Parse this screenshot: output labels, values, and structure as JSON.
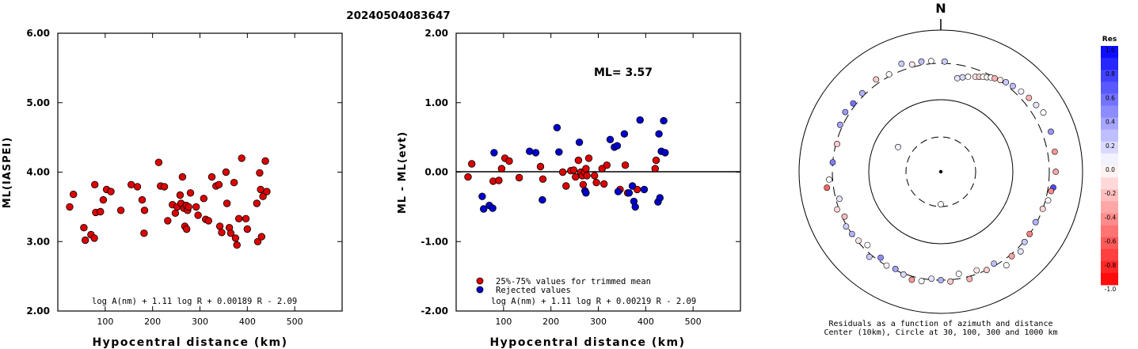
{
  "figure": {
    "title": "20240504083647",
    "north_label": "N",
    "colorbar_title": "Res",
    "colorbar_ticks": [
      "1.0",
      "0.8",
      "0.6",
      "0.4",
      "0.2",
      "0.0",
      "-0.2",
      "-0.4",
      "-0.6",
      "-0.8",
      "-1.0"
    ],
    "polar_caption_line1": "Residuals as a function of azimuth and distance",
    "polar_caption_line2": "Center (10km), Circle at 30, 100, 300 and 1000 km"
  },
  "chart_data": [
    {
      "type": "scatter",
      "title": "",
      "xlabel": "Hypocentral distance (km)",
      "ylabel": "ML(IASPEI)",
      "xlim": [
        0,
        600
      ],
      "ylim": [
        2.0,
        6.0
      ],
      "x_ticks": [
        "100",
        "200",
        "300",
        "400",
        "500"
      ],
      "y_ticks": [
        "2.00",
        "3.00",
        "4.00",
        "5.00",
        "6.00"
      ],
      "annotation": "log A(nm) + 1.11 log R + 0.00189 R - 2.09",
      "series": [
        {
          "color": "#dd0000",
          "points": [
            [
              25,
              3.5
            ],
            [
              33,
              3.68
            ],
            [
              55,
              3.2
            ],
            [
              58,
              3.02
            ],
            [
              70,
              3.1
            ],
            [
              77,
              3.05
            ],
            [
              78,
              3.82
            ],
            [
              80,
              3.42
            ],
            [
              90,
              3.43
            ],
            [
              96,
              3.6
            ],
            [
              103,
              3.75
            ],
            [
              112,
              3.72
            ],
            [
              133,
              3.45
            ],
            [
              155,
              3.82
            ],
            [
              168,
              3.79
            ],
            [
              178,
              3.6
            ],
            [
              182,
              3.12
            ],
            [
              183,
              3.45
            ],
            [
              213,
              4.14
            ],
            [
              217,
              3.8
            ],
            [
              225,
              3.79
            ],
            [
              232,
              3.3
            ],
            [
              242,
              3.53
            ],
            [
              248,
              3.41
            ],
            [
              252,
              3.5
            ],
            [
              258,
              3.67
            ],
            [
              260,
              3.55
            ],
            [
              263,
              3.93
            ],
            [
              266,
              3.48
            ],
            [
              268,
              3.22
            ],
            [
              271,
              3.52
            ],
            [
              272,
              3.18
            ],
            [
              274,
              3.45
            ],
            [
              276,
              3.5
            ],
            [
              280,
              3.7
            ],
            [
              292,
              3.5
            ],
            [
              296,
              3.38
            ],
            [
              308,
              3.62
            ],
            [
              312,
              3.32
            ],
            [
              318,
              3.3
            ],
            [
              325,
              3.93
            ],
            [
              334,
              3.8
            ],
            [
              340,
              3.82
            ],
            [
              342,
              3.22
            ],
            [
              346,
              3.13
            ],
            [
              355,
              4.0
            ],
            [
              357,
              3.55
            ],
            [
              362,
              3.2
            ],
            [
              365,
              3.12
            ],
            [
              372,
              3.85
            ],
            [
              375,
              3.05
            ],
            [
              378,
              2.95
            ],
            [
              382,
              3.33
            ],
            [
              388,
              4.2
            ],
            [
              397,
              3.33
            ],
            [
              400,
              3.18
            ],
            [
              420,
              3.55
            ],
            [
              422,
              3.0
            ],
            [
              426,
              3.99
            ],
            [
              428,
              3.75
            ],
            [
              430,
              3.07
            ],
            [
              433,
              3.65
            ],
            [
              438,
              4.16
            ],
            [
              441,
              3.72
            ]
          ]
        }
      ]
    },
    {
      "type": "scatter",
      "title": "",
      "xlabel": "Hypocentral distance (km)",
      "ylabel": "ML - ML(evt)",
      "xlim": [
        0,
        600
      ],
      "ylim": [
        -2.0,
        2.0
      ],
      "x_ticks": [
        "100",
        "200",
        "300",
        "400",
        "500"
      ],
      "y_ticks": [
        "-2.00",
        "-1.00",
        "0.00",
        "1.00",
        "2.00"
      ],
      "ml_label": "ML= 3.57",
      "annotation": "log A(nm) + 1.11 log R + 0.00219 R - 2.09",
      "series": [
        {
          "name": "25%-75% values for trimmed mean",
          "color": "#dd0000",
          "points": [
            [
              25,
              -0.07
            ],
            [
              33,
              0.12
            ],
            [
              78,
              -0.13
            ],
            [
              90,
              -0.12
            ],
            [
              96,
              0.05
            ],
            [
              103,
              0.2
            ],
            [
              112,
              0.16
            ],
            [
              133,
              -0.08
            ],
            [
              178,
              0.08
            ],
            [
              183,
              -0.1
            ],
            [
              225,
              0.0
            ],
            [
              232,
              -0.2
            ],
            [
              242,
              0.02
            ],
            [
              248,
              0.03
            ],
            [
              252,
              -0.07
            ],
            [
              258,
              0.17
            ],
            [
              263,
              0.0
            ],
            [
              266,
              -0.05
            ],
            [
              268,
              -0.18
            ],
            [
              271,
              0.0
            ],
            [
              274,
              0.05
            ],
            [
              276,
              -0.05
            ],
            [
              280,
              0.2
            ],
            [
              292,
              -0.05
            ],
            [
              296,
              -0.15
            ],
            [
              308,
              0.05
            ],
            [
              312,
              -0.17
            ],
            [
              318,
              0.1
            ],
            [
              346,
              -0.25
            ],
            [
              357,
              0.1
            ],
            [
              362,
              -0.3
            ],
            [
              382,
              -0.25
            ],
            [
              420,
              0.05
            ],
            [
              422,
              0.17
            ]
          ]
        },
        {
          "name": "Rejected values",
          "color": "#0000cc",
          "points": [
            [
              55,
              -0.35
            ],
            [
              58,
              -0.53
            ],
            [
              70,
              -0.48
            ],
            [
              77,
              -0.52
            ],
            [
              80,
              0.28
            ],
            [
              155,
              0.3
            ],
            [
              168,
              0.28
            ],
            [
              182,
              -0.4
            ],
            [
              213,
              0.64
            ],
            [
              217,
              0.29
            ],
            [
              260,
              0.43
            ],
            [
              272,
              -0.27
            ],
            [
              274,
              -0.3
            ],
            [
              325,
              0.47
            ],
            [
              334,
              0.36
            ],
            [
              340,
              0.38
            ],
            [
              342,
              -0.28
            ],
            [
              355,
              0.55
            ],
            [
              365,
              -0.3
            ],
            [
              372,
              -0.2
            ],
            [
              375,
              -0.42
            ],
            [
              378,
              -0.5
            ],
            [
              388,
              0.75
            ],
            [
              397,
              -0.25
            ],
            [
              426,
              -0.43
            ],
            [
              428,
              0.55
            ],
            [
              430,
              -0.37
            ],
            [
              433,
              0.3
            ],
            [
              438,
              0.74
            ],
            [
              441,
              0.28
            ]
          ]
        }
      ]
    },
    {
      "type": "scatter",
      "title": "",
      "projection": "polar azimuth-distance",
      "radius_scale": "log distance, center 10 km",
      "rings_km": [
        30,
        100,
        300,
        1000
      ],
      "color_scale": [
        -1.0,
        1.0
      ],
      "points": [
        {
          "az": 180,
          "dist": 28,
          "res": 0.0
        },
        {
          "az": 300,
          "dist": 48,
          "res": 0.05
        },
        {
          "az": 10,
          "dist": 200,
          "res": 0.1
        },
        {
          "az": 13,
          "dist": 212,
          "res": 0.15
        },
        {
          "az": 16,
          "dist": 225,
          "res": 0.0
        },
        {
          "az": 20,
          "dist": 240,
          "res": -0.1
        },
        {
          "az": 22,
          "dist": 250,
          "res": -0.2
        },
        {
          "az": 24,
          "dist": 262,
          "res": 0.0
        },
        {
          "az": 26,
          "dist": 272,
          "res": -0.05
        },
        {
          "az": 28,
          "dist": 285,
          "res": 0.0
        },
        {
          "az": 30,
          "dist": 295,
          "res": -0.3
        },
        {
          "az": 33,
          "dist": 310,
          "res": -0.1
        },
        {
          "az": 36,
          "dist": 325,
          "res": 0.2
        },
        {
          "az": 40,
          "dist": 340,
          "res": 0.25
        },
        {
          "az": 45,
          "dist": 360,
          "res": 0.05
        },
        {
          "az": 50,
          "dist": 380,
          "res": -0.3
        },
        {
          "az": 55,
          "dist": 400,
          "res": 0.1
        },
        {
          "az": 60,
          "dist": 430,
          "res": 0.0
        },
        {
          "az": 70,
          "dist": 410,
          "res": 0.4
        },
        {
          "az": 80,
          "dist": 390,
          "res": -0.4
        },
        {
          "az": 90,
          "dist": 380,
          "res": -0.35
        },
        {
          "az": 98,
          "dist": 360,
          "res": 0.7
        },
        {
          "az": 100,
          "dist": 340,
          "res": -0.45
        },
        {
          "az": 105,
          "dist": 330,
          "res": 0.0
        },
        {
          "az": 110,
          "dist": 300,
          "res": -0.15
        },
        {
          "az": 118,
          "dist": 290,
          "res": 0.3
        },
        {
          "az": 125,
          "dist": 300,
          "res": -0.5
        },
        {
          "az": 130,
          "dist": 310,
          "res": 0.2
        },
        {
          "az": 135,
          "dist": 350,
          "res": 0.1
        },
        {
          "az": 140,
          "dist": 320,
          "res": -0.35
        },
        {
          "az": 145,
          "dist": 370,
          "res": 0.0
        },
        {
          "az": 150,
          "dist": 280,
          "res": 0.25
        },
        {
          "az": 155,
          "dist": 300,
          "res": -0.2
        },
        {
          "az": 160,
          "dist": 270,
          "res": -0.1
        },
        {
          "az": 165,
          "dist": 330,
          "res": -0.3
        },
        {
          "az": 170,
          "dist": 260,
          "res": 0.0
        },
        {
          "az": 175,
          "dist": 320,
          "res": -0.2
        },
        {
          "az": 180,
          "dist": 300,
          "res": 0.3
        },
        {
          "az": 185,
          "dist": 290,
          "res": 0.1
        },
        {
          "az": 190,
          "dist": 330,
          "res": 0.0
        },
        {
          "az": 195,
          "dist": 340,
          "res": -0.4
        },
        {
          "az": 200,
          "dist": 310,
          "res": 0.15
        },
        {
          "az": 205,
          "dist": 290,
          "res": 0.35
        },
        {
          "az": 210,
          "dist": 300,
          "res": -0.05
        },
        {
          "az": 215,
          "dist": 270,
          "res": 0.45
        },
        {
          "az": 220,
          "dist": 330,
          "res": 0.2
        },
        {
          "az": 225,
          "dist": 260,
          "res": 0.0
        },
        {
          "az": 230,
          "dist": 290,
          "res": -0.1
        },
        {
          "az": 235,
          "dist": 300,
          "res": 0.3
        },
        {
          "az": 240,
          "dist": 310,
          "res": 0.2
        },
        {
          "az": 245,
          "dist": 280,
          "res": -0.25
        },
        {
          "az": 250,
          "dist": 320,
          "res": -0.15
        },
        {
          "az": 255,
          "dist": 270,
          "res": 0.1
        },
        {
          "az": 262,
          "dist": 380,
          "res": -0.6
        },
        {
          "az": 266,
          "dist": 340,
          "res": 0.0
        },
        {
          "az": 275,
          "dist": 300,
          "res": 0.5
        },
        {
          "az": 285,
          "dist": 290,
          "res": -0.2
        },
        {
          "az": 295,
          "dist": 330,
          "res": 0.35
        },
        {
          "az": 302,
          "dist": 350,
          "res": 0.4
        },
        {
          "az": 308,
          "dist": 330,
          "res": 0.55
        },
        {
          "az": 315,
          "dist": 330,
          "res": 0.3
        },
        {
          "az": 325,
          "dist": 350,
          "res": -0.2
        },
        {
          "az": 332,
          "dist": 320,
          "res": 0.0
        },
        {
          "az": 340,
          "dist": 380,
          "res": 0.2
        },
        {
          "az": 345,
          "dist": 330,
          "res": -0.1
        },
        {
          "az": 350,
          "dist": 340,
          "res": 0.25
        },
        {
          "az": 355,
          "dist": 330,
          "res": 0.0
        },
        {
          "az": 2,
          "dist": 320,
          "res": 0.2
        }
      ]
    }
  ]
}
